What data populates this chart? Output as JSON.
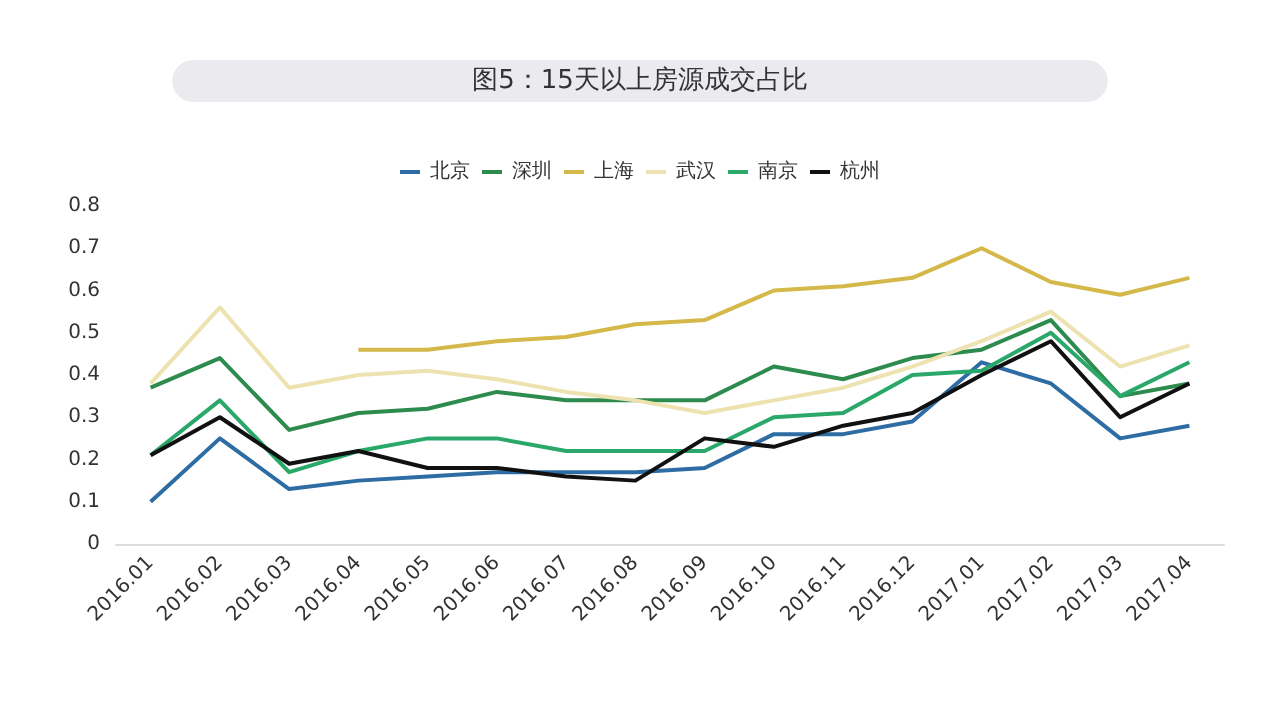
{
  "chart_data": {
    "type": "line",
    "title": "图5：15天以上房源成交占比",
    "categories": [
      "2016.01",
      "2016.02",
      "2016.03",
      "2016.04",
      "2016.05",
      "2016.06",
      "2016.07",
      "2016.08",
      "2016.09",
      "2016.10",
      "2016.11",
      "2016.12",
      "2017.01",
      "2017.02",
      "2017.03",
      "2017.04"
    ],
    "series": [
      {
        "name": "北京",
        "color": "#2e6da4",
        "values": [
          0.1,
          0.25,
          0.13,
          0.15,
          0.16,
          0.17,
          0.17,
          0.17,
          0.18,
          0.26,
          0.26,
          0.29,
          0.43,
          0.38,
          0.25,
          0.28
        ]
      },
      {
        "name": "深圳",
        "color": "#2e8b4e",
        "values": [
          0.37,
          0.44,
          0.27,
          0.31,
          0.32,
          0.36,
          0.34,
          0.34,
          0.34,
          0.42,
          0.39,
          0.44,
          0.46,
          0.53,
          0.35,
          0.38
        ]
      },
      {
        "name": "上海",
        "color": "#d4b84a",
        "values": [
          null,
          null,
          null,
          0.46,
          0.46,
          0.48,
          0.49,
          0.52,
          0.53,
          0.6,
          0.61,
          0.63,
          0.7,
          0.62,
          0.59,
          0.63
        ]
      },
      {
        "name": "武汉",
        "color": "#ede3b0",
        "values": [
          0.38,
          0.56,
          0.37,
          0.4,
          0.41,
          0.39,
          0.36,
          0.34,
          0.31,
          0.34,
          0.37,
          0.42,
          0.48,
          0.55,
          0.42,
          0.47
        ]
      },
      {
        "name": "南京",
        "color": "#2aa86a",
        "values": [
          0.21,
          0.34,
          0.17,
          0.22,
          0.25,
          0.25,
          0.22,
          0.22,
          0.22,
          0.3,
          0.31,
          0.4,
          0.41,
          0.5,
          0.35,
          0.43
        ]
      },
      {
        "name": "杭州",
        "color": "#111111",
        "values": [
          0.21,
          0.3,
          0.19,
          0.22,
          0.18,
          0.18,
          0.16,
          0.15,
          0.25,
          0.23,
          0.28,
          0.31,
          0.4,
          0.48,
          0.3,
          0.38
        ]
      }
    ],
    "ylim": [
      0,
      0.8
    ],
    "yticks": [
      0,
      0.1,
      0.2,
      0.3,
      0.4,
      0.5,
      0.6,
      0.7,
      0.8
    ],
    "grid": false,
    "legend": "top",
    "marker": "none",
    "line_style": "solid"
  }
}
